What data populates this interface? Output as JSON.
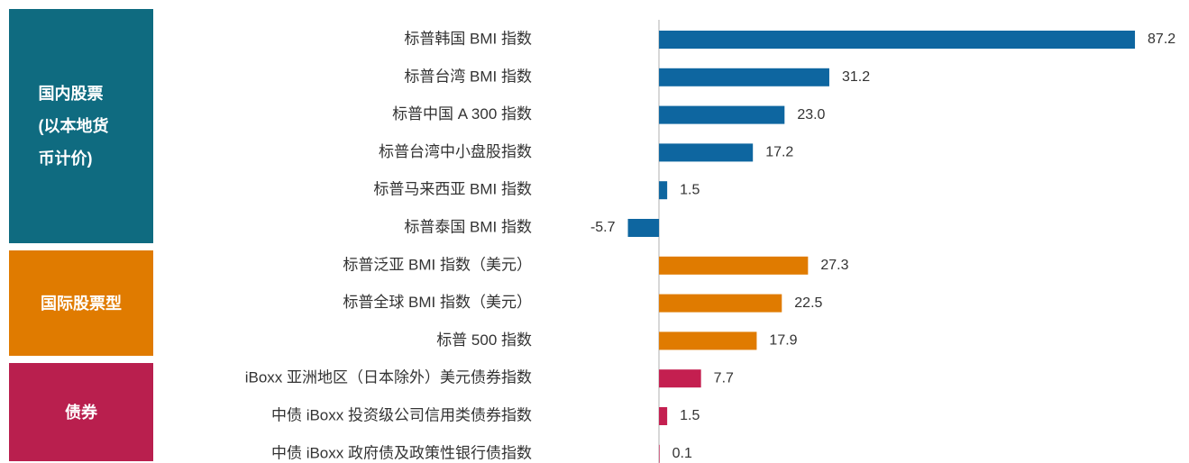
{
  "chart_data": {
    "type": "bar",
    "orientation": "horizontal",
    "xlim": [
      -10,
      90
    ],
    "groups": [
      {
        "name": "国内股票(以本地货币计价)",
        "color": "#0f6b80",
        "bar_color": "#0e66a0",
        "categories": [
          "标普韩国 BMI 指数",
          "标普台湾 BMI 指数",
          "标普中国 A 300 指数",
          "标普台湾中小盘股指数",
          "标普马来西亚 BMI 指数",
          "标普泰国 BMI 指数"
        ],
        "values": [
          87.2,
          31.2,
          23.0,
          17.2,
          1.5,
          -5.7
        ],
        "value_labels": [
          "87.2",
          "31.2",
          "23.0",
          "17.2",
          "1.5",
          "-5.7"
        ]
      },
      {
        "name": "国际股票型",
        "color": "#e07b00",
        "bar_color": "#e07b00",
        "categories": [
          "标普泛亚 BMI 指数（美元）",
          "标普全球 BMI 指数（美元）",
          "标普 500 指数"
        ],
        "values": [
          27.3,
          22.5,
          17.9
        ],
        "value_labels": [
          "27.3",
          "22.5",
          "17.9"
        ]
      },
      {
        "name": "债券",
        "color": "#b91f4e",
        "bar_color": "#c41f50",
        "categories": [
          "iBoxx 亚洲地区（日本除外）美元债券指数",
          "中债 iBoxx 投资级公司信用类债券指数",
          "中债 iBoxx 政府债及政策性银行债指数"
        ],
        "values": [
          7.7,
          1.5,
          0.1
        ],
        "value_labels": [
          "7.7",
          "1.5",
          "0.1"
        ]
      }
    ]
  }
}
